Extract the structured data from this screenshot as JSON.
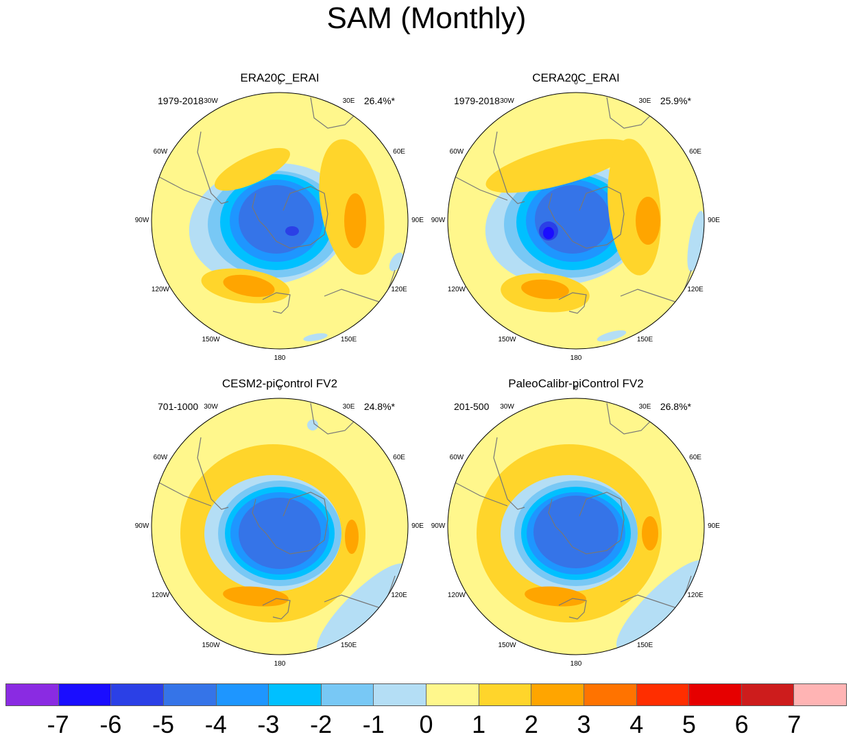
{
  "title": "SAM (Monthly)",
  "lon_labels": [
    "0",
    "30E",
    "60E",
    "90E",
    "120E",
    "150E",
    "180",
    "150W",
    "120W",
    "90W",
    "60W",
    "30W"
  ],
  "panels": [
    {
      "title": "ERA20C_ERAI",
      "period": "1979-2018",
      "percent": "26.4%*"
    },
    {
      "title": "CERA20C_ERAI",
      "period": "1979-2018",
      "percent": "25.9%*"
    },
    {
      "title": "CESM2-piControl FV2",
      "period": "701-1000",
      "percent": "24.8%*"
    },
    {
      "title": "PaleoCalibr-piControl FV2",
      "period": "201-500",
      "percent": "26.8%*"
    }
  ],
  "colorbar": {
    "labels": [
      "-7",
      "-6",
      "-5",
      "-4",
      "-3",
      "-2",
      "-1",
      "0",
      "1",
      "2",
      "3",
      "4",
      "5",
      "6",
      "7"
    ],
    "colors": [
      "#8a2be2",
      "#1a0dff",
      "#2b40e6",
      "#3574e8",
      "#1e96ff",
      "#00c0ff",
      "#78c8f5",
      "#b4def5",
      "#fff78c",
      "#ffd52b",
      "#ffa500",
      "#ff7300",
      "#ff2e00",
      "#e60000",
      "#cd1c1c",
      "#ffb4b4"
    ]
  },
  "colors": {
    "land_outline": "#777777",
    "circle_outline": "#000000"
  }
}
